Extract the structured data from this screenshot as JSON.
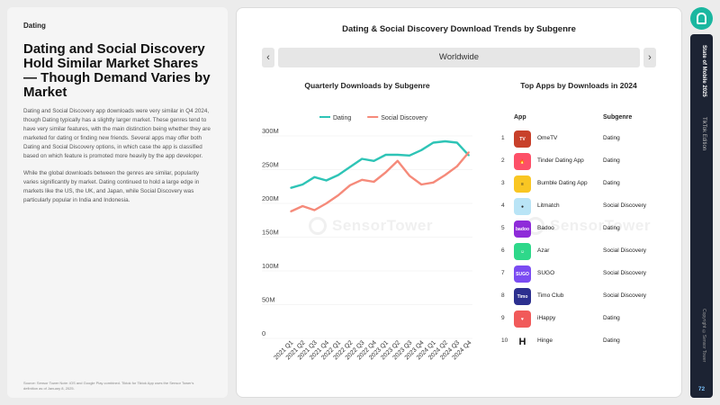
{
  "left": {
    "eyebrow": "Dating",
    "headline": "Dating and Social Discovery Hold Similar Market Shares — Though Demand Varies by Market",
    "para1": "Dating and Social Discovery app downloads were very similar in Q4 2024, though Dating typically has a slightly larger market. These genres tend to have very similar features, with the main distinction being whether they are marketed for dating or finding new friends. Several apps may offer both Dating and Social Discovery options, in which case the app is classified based on which feature is promoted more heavily by the app developer.",
    "para2": "While the global downloads between the genres are similar, popularity varies significantly by market. Dating continued to hold a large edge in markets like the US, the UK, and Japan, while Social Discovery was particularly popular in India and Indonesia.",
    "source": "Source: Sensor Tower\nNote: iOS and Google Play combined. Tiktok for Tiktok App uses the Sensor Tower's definition as of January 8, 2025."
  },
  "main": {
    "title": "Dating & Social Discovery Download Trends by Subgenre",
    "region": "Worldwide",
    "prev_icon": "‹",
    "next_icon": "›",
    "watermark": "SensorTower"
  },
  "chart_data": {
    "type": "line",
    "title": "Quarterly Downloads by Subgenre",
    "x": [
      "2021 Q1",
      "2021 Q2",
      "2021 Q3",
      "2021 Q4",
      "2022 Q1",
      "2022 Q2",
      "2022 Q3",
      "2022 Q4",
      "2023 Q1",
      "2023 Q2",
      "2023 Q3",
      "2023 Q4",
      "2024 Q1",
      "2024 Q2",
      "2024 Q3",
      "2024 Q4"
    ],
    "yticks": [
      "0",
      "50M",
      "100M",
      "150M",
      "200M",
      "250M",
      "300M"
    ],
    "ylim": [
      0,
      300000000
    ],
    "series": [
      {
        "name": "Dating",
        "color": "#2ec4b6",
        "values": [
          223000000,
          228000000,
          239000000,
          234000000,
          242000000,
          254000000,
          266000000,
          263000000,
          272000000,
          272000000,
          271000000,
          279000000,
          290000000,
          292000000,
          290000000,
          271000000
        ]
      },
      {
        "name": "Social Discovery",
        "color": "#f58a7a",
        "values": [
          188000000,
          196000000,
          190000000,
          200000000,
          212000000,
          227000000,
          235000000,
          232000000,
          246000000,
          263000000,
          241000000,
          228000000,
          231000000,
          242000000,
          255000000,
          276000000
        ]
      }
    ],
    "legend_position": "top"
  },
  "top_apps": {
    "title": "Top Apps by Downloads in 2024",
    "col_app": "App",
    "col_subgenre": "Subgenre",
    "rows": [
      {
        "rank": "1",
        "name": "OmeTV",
        "subgenre": "Dating",
        "icon": "ometv-icon",
        "color": "#c8402a",
        "glyph": "TV"
      },
      {
        "rank": "2",
        "name": "Tinder Dating App",
        "subgenre": "Dating",
        "icon": "tinder-icon",
        "color": "#fd5068",
        "glyph": "🔥"
      },
      {
        "rank": "3",
        "name": "Bumble Dating App",
        "subgenre": "Dating",
        "icon": "bumble-icon",
        "color": "#f9c623",
        "glyph": "≡"
      },
      {
        "rank": "4",
        "name": "Litmatch",
        "subgenre": "Social Discovery",
        "icon": "litmatch-icon",
        "color": "#b9e4f6",
        "glyph": "●"
      },
      {
        "rank": "5",
        "name": "Badoo",
        "subgenre": "Dating",
        "icon": "badoo-icon",
        "color": "#8e2bd9",
        "glyph": "badoo"
      },
      {
        "rank": "6",
        "name": "Azar",
        "subgenre": "Social Discovery",
        "icon": "azar-icon",
        "color": "#2ed88a",
        "glyph": "☺"
      },
      {
        "rank": "7",
        "name": "SUGO",
        "subgenre": "Social Discovery",
        "icon": "sugo-icon",
        "color": "#7b4cf2",
        "glyph": "SUGO"
      },
      {
        "rank": "8",
        "name": "Timo Club",
        "subgenre": "Social Discovery",
        "icon": "timo-icon",
        "color": "#2c2f8f",
        "glyph": "Timo"
      },
      {
        "rank": "9",
        "name": "iHappy",
        "subgenre": "Dating",
        "icon": "ihappy-icon",
        "color": "#f15a5a",
        "glyph": "♥"
      },
      {
        "rank": "10",
        "name": "Hinge",
        "subgenre": "Dating",
        "icon": "hinge-icon",
        "color": "#ffffff",
        "glyph": "H"
      }
    ]
  },
  "side": {
    "title": "State of Mobile 2025",
    "edition": "TikTok Edition",
    "copyright": "Copyright ©Sensor Tower",
    "page": "72"
  }
}
